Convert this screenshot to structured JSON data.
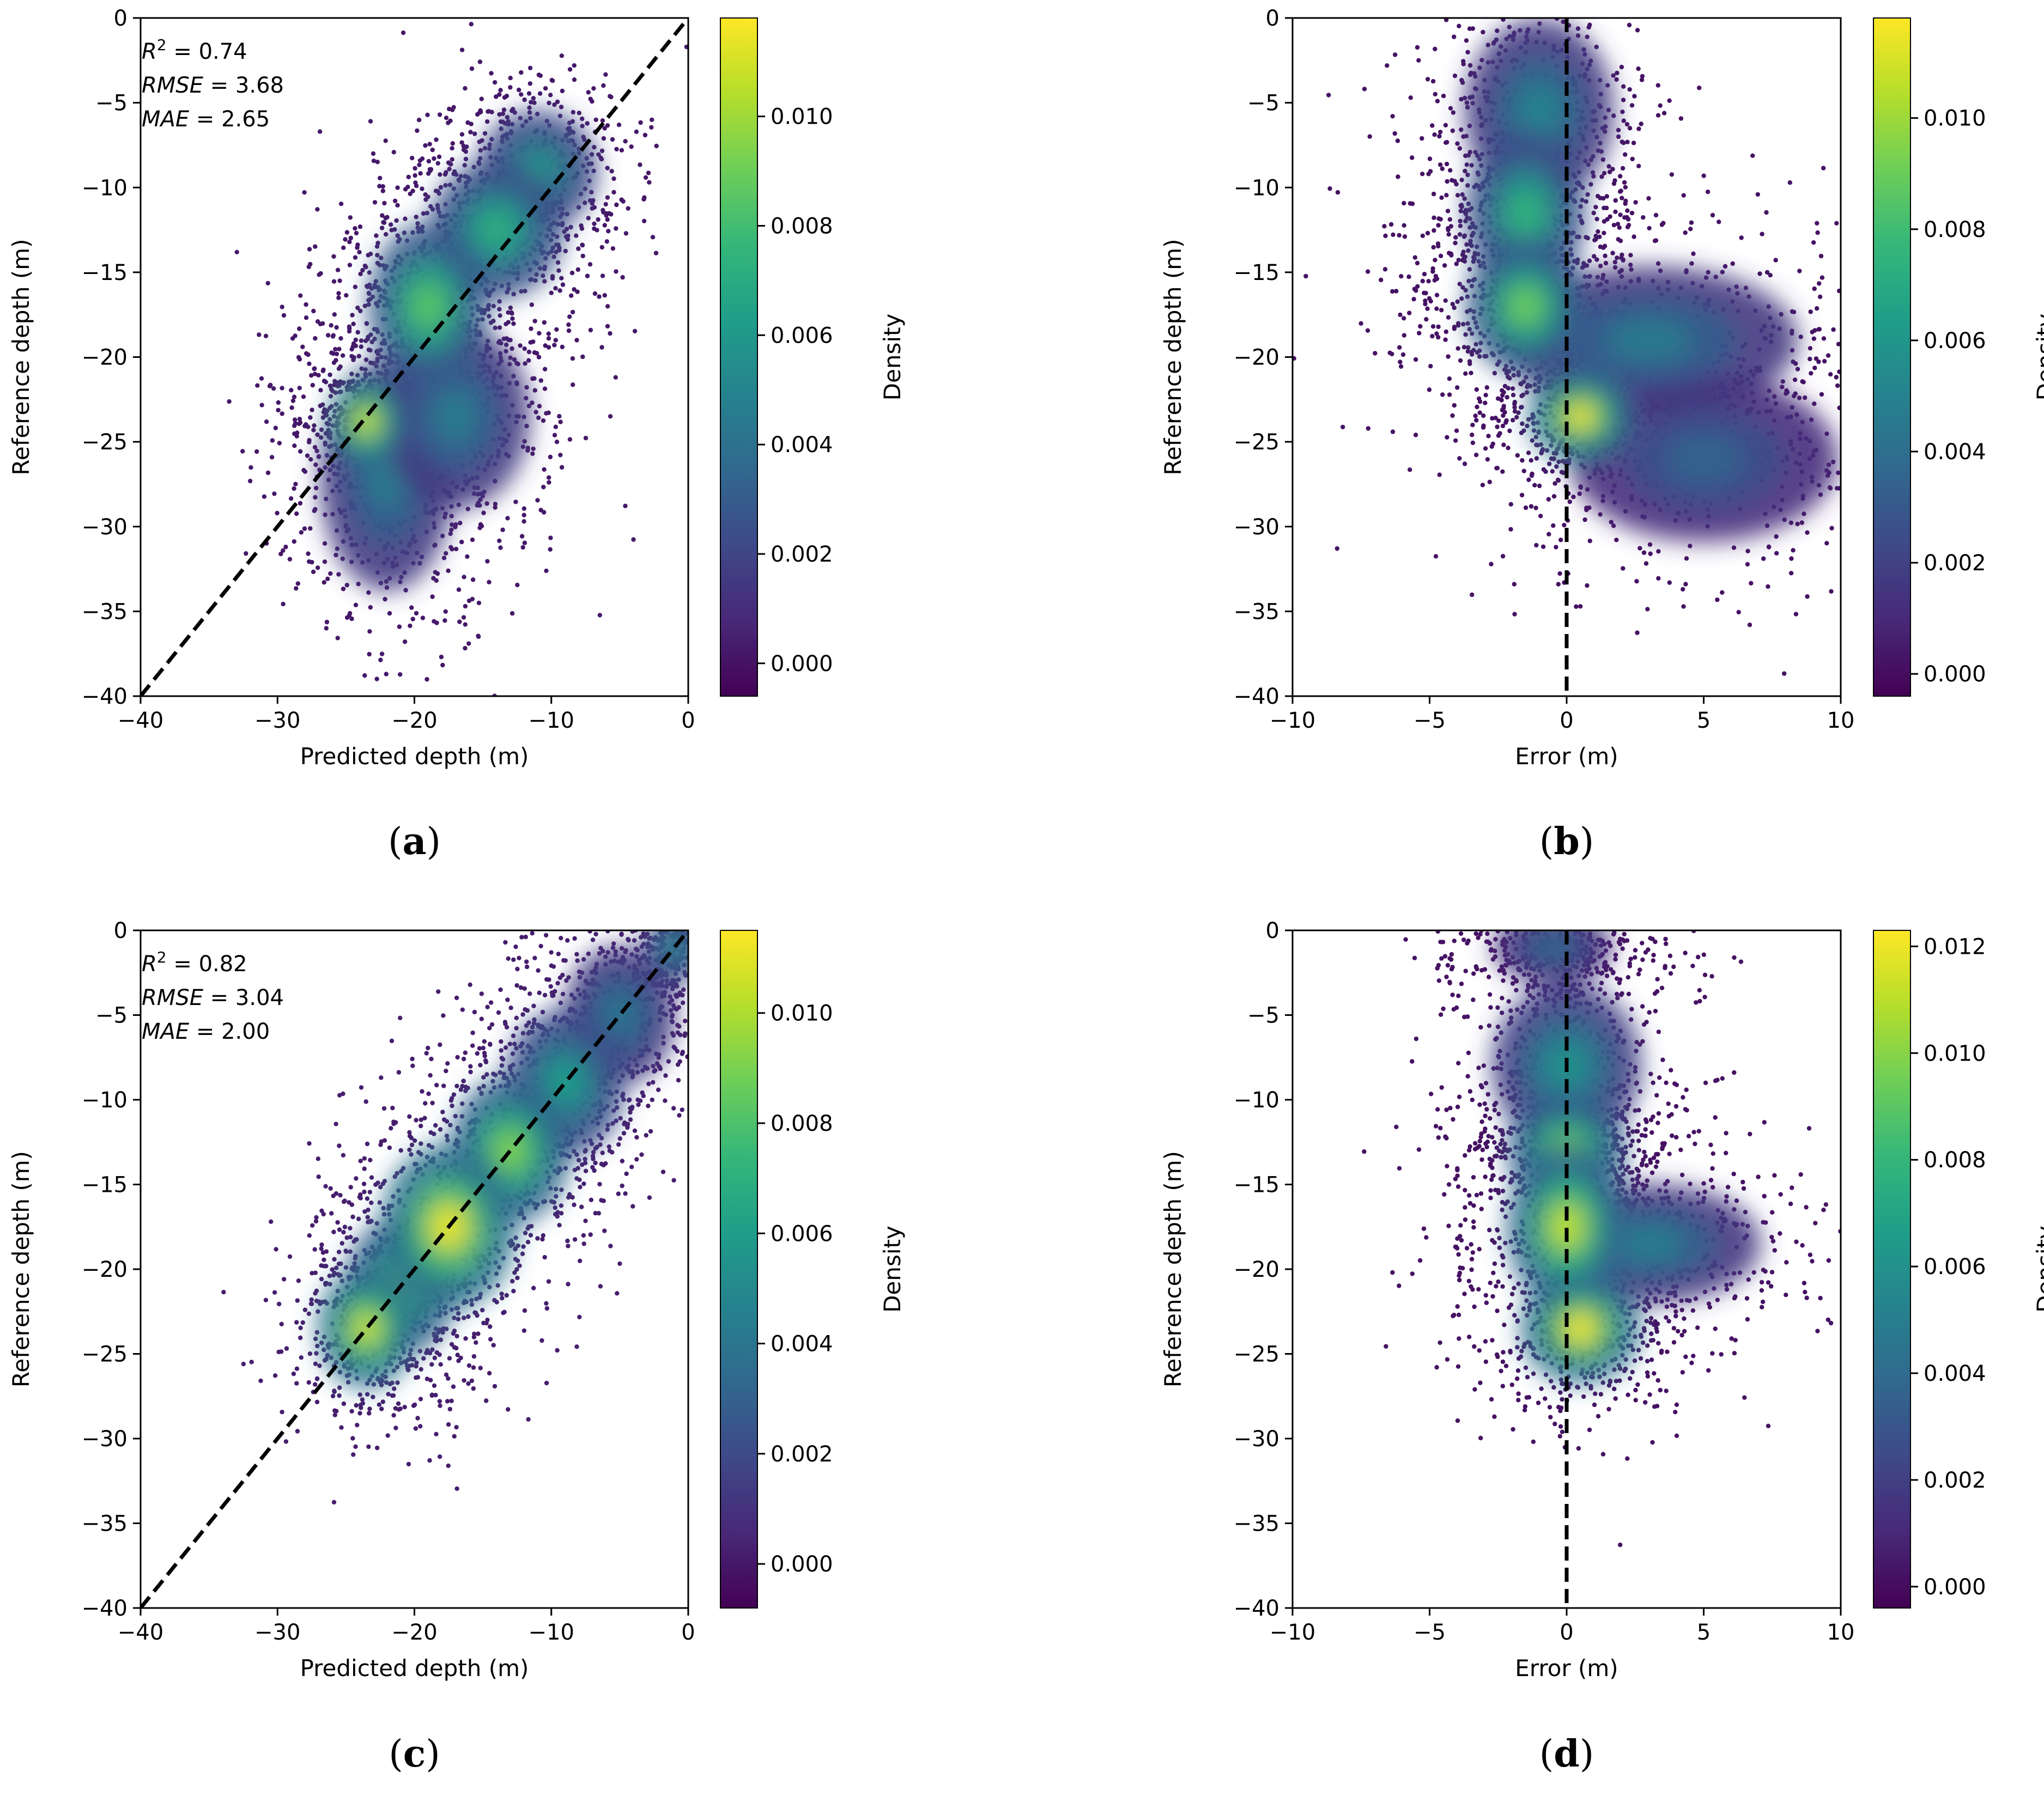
{
  "figure": {
    "colormap": [
      "#440154",
      "#482878",
      "#3e4989",
      "#31688e",
      "#26828e",
      "#1f9e89",
      "#35b779",
      "#6ece58",
      "#b5de2b",
      "#fde725"
    ],
    "line_color": "#000000"
  },
  "chart_data": [
    {
      "id": "a",
      "caption": "a",
      "type": "scatter",
      "subtype": "density",
      "xlabel": "Predicted depth (m)",
      "ylabel": "Reference depth (m)",
      "xlim": [
        -40,
        0
      ],
      "ylim": [
        -40,
        0
      ],
      "xticks": [
        -40,
        -30,
        -20,
        -10,
        0
      ],
      "xtick_labels": [
        "−40",
        "−30",
        "−20",
        "−10",
        "0"
      ],
      "yticks": [
        0,
        -5,
        -10,
        -15,
        -20,
        -25,
        -30,
        -35,
        -40
      ],
      "ytick_labels": [
        "0",
        "−5",
        "−10",
        "−15",
        "−20",
        "−25",
        "−30",
        "−35",
        "−40"
      ],
      "stats": [
        {
          "name": "R",
          "sup": "2",
          "eq": " = 0.74"
        },
        {
          "name": "RMSE",
          "sup": "",
          "eq": " = 3.68"
        },
        {
          "name": "MAE",
          "sup": "",
          "eq": " = 2.65"
        }
      ],
      "reference_line": {
        "style": "dashed",
        "from": [
          -40,
          -40
        ],
        "to": [
          0,
          0
        ]
      },
      "colorbar": {
        "label": "Density",
        "min": -0.0006,
        "max": 0.0118,
        "ticks": [
          0.0,
          0.002,
          0.004,
          0.006,
          0.008,
          0.01
        ],
        "tick_labels": [
          "0.000",
          "0.002",
          "0.004",
          "0.006",
          "0.008",
          "0.010"
        ]
      },
      "clusters": [
        {
          "x": -23.5,
          "y": -23.8,
          "sx": 1.0,
          "sy": 1.0,
          "density": 0.011
        },
        {
          "x": -19.0,
          "y": -17.0,
          "sx": 1.6,
          "sy": 1.8,
          "density": 0.0085
        },
        {
          "x": -14.0,
          "y": -12.5,
          "sx": 1.8,
          "sy": 1.5,
          "density": 0.0072
        },
        {
          "x": -11.0,
          "y": -9.0,
          "sx": 1.6,
          "sy": 1.3,
          "density": 0.006
        },
        {
          "x": -22.0,
          "y": -27.0,
          "sx": 1.8,
          "sy": 2.5,
          "density": 0.0045
        },
        {
          "x": -17.0,
          "y": -23.5,
          "sx": 2.0,
          "sy": 2.0,
          "density": 0.0045
        }
      ]
    },
    {
      "id": "b",
      "caption": "b",
      "type": "scatter",
      "subtype": "density",
      "xlabel": "Error (m)",
      "ylabel": "Reference depth (m)",
      "xlim": [
        -10,
        10
      ],
      "ylim": [
        -40,
        0
      ],
      "xticks": [
        -10,
        -5,
        0,
        5,
        10
      ],
      "xtick_labels": [
        "−10",
        "−5",
        "0",
        "5",
        "10"
      ],
      "yticks": [
        0,
        -5,
        -10,
        -15,
        -20,
        -25,
        -30,
        -35,
        -40
      ],
      "ytick_labels": [
        "0",
        "−5",
        "−10",
        "−15",
        "−20",
        "−25",
        "−30",
        "−35",
        "−40"
      ],
      "stats": [],
      "reference_line": {
        "style": "dashed",
        "from": [
          0,
          0
        ],
        "to": [
          0,
          -40
        ]
      },
      "colorbar": {
        "label": "Density",
        "min": -0.0004,
        "max": 0.0118,
        "ticks": [
          0.0,
          0.002,
          0.004,
          0.006,
          0.008,
          0.01
        ],
        "tick_labels": [
          "0.000",
          "0.002",
          "0.004",
          "0.006",
          "0.008",
          "0.010"
        ]
      },
      "clusters": [
        {
          "x": 0.5,
          "y": -23.5,
          "sx": 0.7,
          "sy": 1.0,
          "density": 0.0115
        },
        {
          "x": -1.5,
          "y": -17.0,
          "sx": 0.8,
          "sy": 1.5,
          "density": 0.009
        },
        {
          "x": -1.5,
          "y": -11.5,
          "sx": 0.8,
          "sy": 1.8,
          "density": 0.0075
        },
        {
          "x": -1.0,
          "y": -5.5,
          "sx": 1.0,
          "sy": 2.0,
          "density": 0.005
        },
        {
          "x": 3.0,
          "y": -19.0,
          "sx": 2.0,
          "sy": 1.6,
          "density": 0.0045
        },
        {
          "x": 5.0,
          "y": -26.0,
          "sx": 1.8,
          "sy": 1.8,
          "density": 0.0035
        }
      ]
    },
    {
      "id": "c",
      "caption": "c",
      "type": "scatter",
      "subtype": "density",
      "xlabel": "Predicted depth (m)",
      "ylabel": "Reference depth (m)",
      "xlim": [
        -40,
        0
      ],
      "ylim": [
        -40,
        0
      ],
      "xticks": [
        -40,
        -30,
        -20,
        -10,
        0
      ],
      "xtick_labels": [
        "−40",
        "−30",
        "−20",
        "−10",
        "0"
      ],
      "yticks": [
        0,
        -5,
        -10,
        -15,
        -20,
        -25,
        -30,
        -35,
        -40
      ],
      "ytick_labels": [
        "0",
        "−5",
        "−10",
        "−15",
        "−20",
        "−25",
        "−30",
        "−35",
        "−40"
      ],
      "stats": [
        {
          "name": "R",
          "sup": "2",
          "eq": " = 0.82"
        },
        {
          "name": "RMSE",
          "sup": "",
          "eq": " = 3.04"
        },
        {
          "name": "MAE",
          "sup": "",
          "eq": " = 2.00"
        }
      ],
      "reference_line": {
        "style": "dashed",
        "from": [
          -40,
          -40
        ],
        "to": [
          0,
          0
        ]
      },
      "colorbar": {
        "label": "Density",
        "min": -0.0008,
        "max": 0.0115,
        "ticks": [
          0.0,
          0.002,
          0.004,
          0.006,
          0.008,
          0.01
        ],
        "tick_labels": [
          "0.000",
          "0.002",
          "0.004",
          "0.006",
          "0.008",
          "0.010"
        ]
      },
      "clusters": [
        {
          "x": -17.5,
          "y": -17.5,
          "sx": 1.8,
          "sy": 1.8,
          "density": 0.011
        },
        {
          "x": -23.5,
          "y": -23.5,
          "sx": 1.3,
          "sy": 1.3,
          "density": 0.0105
        },
        {
          "x": -13.0,
          "y": -13.0,
          "sx": 1.6,
          "sy": 1.6,
          "density": 0.009
        },
        {
          "x": -9.0,
          "y": -9.0,
          "sx": 1.6,
          "sy": 1.6,
          "density": 0.006
        },
        {
          "x": -21.0,
          "y": -21.0,
          "sx": 1.5,
          "sy": 1.5,
          "density": 0.0085
        },
        {
          "x": -5.0,
          "y": -5.0,
          "sx": 1.5,
          "sy": 1.5,
          "density": 0.004
        },
        {
          "x": -1.0,
          "y": -1.0,
          "sx": 0.8,
          "sy": 0.8,
          "density": 0.005
        }
      ]
    },
    {
      "id": "d",
      "caption": "d",
      "type": "scatter",
      "subtype": "density",
      "xlabel": "Error (m)",
      "ylabel": "Reference depth (m)",
      "xlim": [
        -10,
        10
      ],
      "ylim": [
        -40,
        0
      ],
      "xticks": [
        -10,
        -5,
        0,
        5,
        10
      ],
      "xtick_labels": [
        "−10",
        "−5",
        "0",
        "5",
        "10"
      ],
      "yticks": [
        0,
        -5,
        -10,
        -15,
        -20,
        -25,
        -30,
        -35,
        -40
      ],
      "ytick_labels": [
        "0",
        "−5",
        "−10",
        "−15",
        "−20",
        "−25",
        "−30",
        "−35",
        "−40"
      ],
      "stats": [],
      "reference_line": {
        "style": "dashed",
        "from": [
          0,
          0
        ],
        "to": [
          0,
          -40
        ]
      },
      "colorbar": {
        "label": "Density",
        "min": -0.0004,
        "max": 0.0123,
        "ticks": [
          0.0,
          0.002,
          0.004,
          0.006,
          0.008,
          0.01,
          0.012
        ],
        "tick_labels": [
          "0.000",
          "0.002",
          "0.004",
          "0.006",
          "0.008",
          "0.010",
          "0.012"
        ]
      },
      "clusters": [
        {
          "x": 0.5,
          "y": -23.5,
          "sx": 0.8,
          "sy": 1.2,
          "density": 0.012
        },
        {
          "x": 0.0,
          "y": -17.5,
          "sx": 0.8,
          "sy": 1.8,
          "density": 0.011
        },
        {
          "x": 0.0,
          "y": -13.0,
          "sx": 0.8,
          "sy": 1.2,
          "density": 0.01
        },
        {
          "x": 0.0,
          "y": -8.0,
          "sx": 1.0,
          "sy": 1.8,
          "density": 0.006
        },
        {
          "x": 3.0,
          "y": -18.5,
          "sx": 1.5,
          "sy": 1.3,
          "density": 0.005
        },
        {
          "x": -0.5,
          "y": -1.0,
          "sx": 0.8,
          "sy": 0.8,
          "density": 0.004
        }
      ]
    }
  ]
}
